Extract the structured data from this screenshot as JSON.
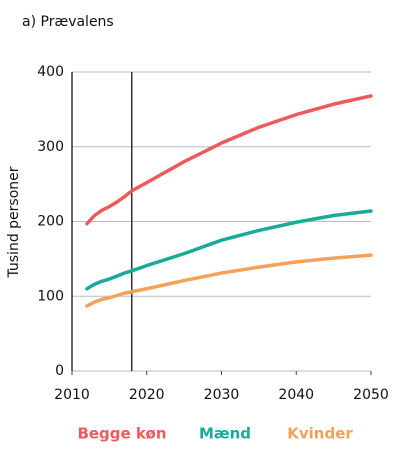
{
  "chart_data": {
    "type": "line",
    "title": "a) Prævalens",
    "y_label": "Tusind personer",
    "x": [
      2012,
      2013,
      2014,
      2015,
      2016,
      2017,
      2018,
      2020,
      2025,
      2030,
      2035,
      2040,
      2045,
      2050
    ],
    "series": [
      {
        "name": "Begge køn",
        "color": "#ec5b5b",
        "values": [
          197,
          208,
          215,
          220,
          226,
          233,
          241,
          252,
          280,
          305,
          326,
          343,
          357,
          368
        ]
      },
      {
        "name": "Mænd",
        "color": "#1aaa9a",
        "values": [
          110,
          116,
          120,
          123,
          127,
          131,
          134,
          141,
          157,
          175,
          188,
          199,
          208,
          214
        ]
      },
      {
        "name": "Kvinder",
        "color": "#f6a15a",
        "values": [
          87,
          92,
          96,
          98,
          101,
          104,
          106,
          110,
          121,
          131,
          139,
          146,
          151,
          155
        ]
      }
    ],
    "xlim": [
      2010,
      2050
    ],
    "xticks": [
      2010,
      2020,
      2030,
      2040,
      2050
    ],
    "ylim": [
      0,
      400
    ],
    "yticks": [
      0,
      100,
      200,
      300,
      400
    ],
    "vline": 2018,
    "grid": true
  }
}
